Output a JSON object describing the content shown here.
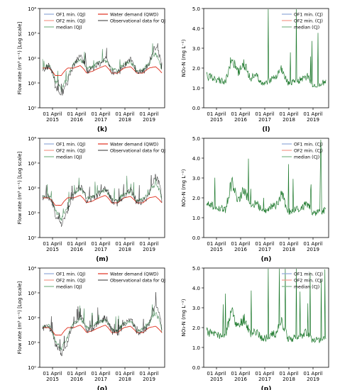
{
  "figure": {
    "x_ticks": [
      "01 April\n2015",
      "01 April\n2016",
      "01 April\n2017",
      "01 April\n2018",
      "01 April\n2019"
    ],
    "flow_ylabel": "Flow rate (m³ s⁻¹) [Log scale]",
    "flow_yticks": [
      "10⁰",
      "10¹",
      "10²",
      "10³",
      "10⁴"
    ],
    "no3_ylabel": "NO₃-N (mg L⁻¹)",
    "no3_yticks": [
      "0.0",
      "1.0",
      "2.0",
      "3.0",
      "4.0",
      "5.0"
    ],
    "flow_legend": [
      {
        "label": "OF1 min. (QJ)",
        "color": "#8fa8d8"
      },
      {
        "label": "OF2 min. (QJ)",
        "color": "#f29a8a"
      },
      {
        "label": "median (QJ)",
        "color": "#7fb88a"
      },
      {
        "label": "Water demand (QWD)",
        "color": "#e0301e"
      },
      {
        "label": "Observational data for QJ",
        "color": "#555555"
      }
    ],
    "no3_legend": [
      {
        "label": "OF1 min. (CJ)",
        "color": "#8fa8d8"
      },
      {
        "label": "OF2 min. (CJ)",
        "color": "#f29a8a"
      },
      {
        "label": "median (CJ)",
        "color": "#7fb88a"
      }
    ]
  },
  "panels": [
    {
      "kind": "flow",
      "label": "(k)"
    },
    {
      "kind": "no3",
      "label": "(l)"
    },
    {
      "kind": "flow",
      "label": "(m)"
    },
    {
      "kind": "no3",
      "label": "(n)"
    },
    {
      "kind": "flow",
      "label": "(o)"
    },
    {
      "kind": "no3",
      "label": "(p)"
    }
  ],
  "chart_data": [
    {
      "type": "line",
      "panel": "(k)",
      "x": [
        "2015-01",
        "2015-04",
        "2015-07",
        "2015-10",
        "2016-01",
        "2016-04",
        "2016-07",
        "2016-10",
        "2017-01",
        "2017-04",
        "2017-07",
        "2017-10",
        "2018-01",
        "2018-04",
        "2018-07",
        "2018-10",
        "2019-01",
        "2019-04",
        "2019-07",
        "2019-10"
      ],
      "series": [
        {
          "name": "median (QJ)",
          "values": [
            40,
            50,
            12,
            5,
            15,
            60,
            90,
            40,
            45,
            70,
            80,
            35,
            30,
            60,
            70,
            30,
            35,
            60,
            150,
            30
          ]
        },
        {
          "name": "Water demand (QWD)",
          "values": [
            40,
            40,
            20,
            20,
            40,
            40,
            50,
            25,
            30,
            40,
            50,
            25,
            25,
            40,
            45,
            25,
            25,
            40,
            45,
            25
          ]
        },
        {
          "name": "Observational data for QJ",
          "values": [
            40,
            45,
            8,
            3,
            10,
            50,
            120,
            30,
            40,
            60,
            100,
            30,
            25,
            50,
            90,
            25,
            30,
            50,
            300,
            25
          ]
        }
      ],
      "ylabel": "Flow rate (m³ s⁻¹) [Log scale]",
      "yscale": "log",
      "ylim": [
        1,
        10000
      ]
    },
    {
      "type": "line",
      "panel": "(l)",
      "x": [
        "2015-01",
        "2015-04",
        "2015-07",
        "2015-10",
        "2016-01",
        "2016-04",
        "2016-07",
        "2016-10",
        "2017-01",
        "2017-04",
        "2017-07",
        "2017-10",
        "2018-01",
        "2018-04",
        "2018-07",
        "2018-10",
        "2019-01",
        "2019-04",
        "2019-07",
        "2019-10"
      ],
      "series": [
        {
          "name": "median (CJ)",
          "values": [
            1.6,
            1.5,
            1.4,
            1.3,
            2.5,
            1.8,
            2.2,
            1.5,
            1.6,
            1.2,
            1.4,
            1.5,
            2.0,
            1.2,
            1.3,
            1.4,
            1.6,
            1.1,
            1.2,
            1.3
          ]
        }
      ],
      "ylabel": "NO₃-N (mg L⁻¹)",
      "ylim": [
        0,
        5
      ]
    },
    {
      "type": "line",
      "panel": "(m)",
      "x": [
        "2015-01",
        "2015-04",
        "2015-07",
        "2015-10",
        "2016-01",
        "2016-04",
        "2016-07",
        "2016-10",
        "2017-01",
        "2017-04",
        "2017-07",
        "2017-10",
        "2018-01",
        "2018-04",
        "2018-07",
        "2018-10",
        "2019-01",
        "2019-04",
        "2019-07",
        "2019-10"
      ],
      "series": [
        {
          "name": "median (QJ)",
          "values": [
            40,
            50,
            12,
            5,
            15,
            60,
            90,
            40,
            45,
            70,
            80,
            35,
            30,
            60,
            70,
            30,
            35,
            60,
            150,
            30
          ]
        },
        {
          "name": "Water demand (QWD)",
          "values": [
            40,
            40,
            20,
            20,
            40,
            40,
            50,
            25,
            30,
            40,
            50,
            25,
            25,
            40,
            45,
            25,
            25,
            40,
            45,
            25
          ]
        },
        {
          "name": "Observational data for QJ",
          "values": [
            40,
            45,
            8,
            3,
            10,
            50,
            120,
            30,
            40,
            60,
            100,
            30,
            25,
            50,
            90,
            25,
            30,
            50,
            300,
            25
          ]
        }
      ],
      "ylabel": "Flow rate (m³ s⁻¹) [Log scale]",
      "yscale": "log",
      "ylim": [
        1,
        10000
      ]
    },
    {
      "type": "line",
      "panel": "(n)",
      "x": [
        "2015-01",
        "2015-04",
        "2015-07",
        "2015-10",
        "2016-01",
        "2016-04",
        "2016-07",
        "2016-10",
        "2017-01",
        "2017-04",
        "2017-07",
        "2017-10",
        "2018-01",
        "2018-04",
        "2018-07",
        "2018-10",
        "2019-01",
        "2019-04",
        "2019-07",
        "2019-10"
      ],
      "series": [
        {
          "name": "median (CJ)",
          "values": [
            1.7,
            1.6,
            1.5,
            1.4,
            2.8,
            1.9,
            2.4,
            1.6,
            1.7,
            1.3,
            1.5,
            1.6,
            2.2,
            1.3,
            1.4,
            1.5,
            1.7,
            1.2,
            1.3,
            1.4
          ]
        }
      ],
      "ylabel": "NO₃-N (mg L⁻¹)",
      "ylim": [
        0,
        5
      ]
    },
    {
      "type": "line",
      "panel": "(o)",
      "x": [
        "2015-01",
        "2015-04",
        "2015-07",
        "2015-10",
        "2016-01",
        "2016-04",
        "2016-07",
        "2016-10",
        "2017-01",
        "2017-04",
        "2017-07",
        "2017-10",
        "2018-01",
        "2018-04",
        "2018-07",
        "2018-10",
        "2019-01",
        "2019-04",
        "2019-07",
        "2019-10"
      ],
      "series": [
        {
          "name": "median (QJ)",
          "values": [
            40,
            50,
            12,
            5,
            15,
            60,
            90,
            40,
            45,
            70,
            80,
            35,
            30,
            60,
            70,
            30,
            35,
            60,
            150,
            30
          ]
        },
        {
          "name": "Water demand (QWD)",
          "values": [
            40,
            40,
            20,
            20,
            40,
            40,
            50,
            25,
            30,
            40,
            50,
            25,
            25,
            40,
            45,
            25,
            25,
            40,
            45,
            25
          ]
        },
        {
          "name": "Observational data for QJ",
          "values": [
            40,
            45,
            8,
            3,
            10,
            50,
            120,
            30,
            40,
            60,
            100,
            30,
            25,
            50,
            90,
            25,
            30,
            50,
            300,
            25
          ]
        }
      ],
      "ylabel": "Flow rate (m³ s⁻¹) [Log scale]",
      "yscale": "log",
      "ylim": [
        1,
        10000
      ]
    },
    {
      "type": "line",
      "panel": "(p)",
      "x": [
        "2015-01",
        "2015-04",
        "2015-07",
        "2015-10",
        "2016-01",
        "2016-04",
        "2016-07",
        "2016-10",
        "2017-01",
        "2017-04",
        "2017-07",
        "2017-10",
        "2018-01",
        "2018-04",
        "2018-07",
        "2018-10",
        "2019-01",
        "2019-04",
        "2019-07",
        "2019-10"
      ],
      "series": [
        {
          "name": "median (CJ)",
          "values": [
            1.8,
            1.7,
            1.6,
            1.5,
            2.9,
            2.0,
            2.5,
            1.7,
            1.8,
            1.4,
            1.6,
            1.7,
            2.3,
            1.4,
            1.5,
            1.6,
            1.8,
            1.3,
            1.4,
            1.5
          ]
        }
      ],
      "ylabel": "NO₃-N (mg L⁻¹)",
      "ylim": [
        0,
        5
      ]
    }
  ]
}
